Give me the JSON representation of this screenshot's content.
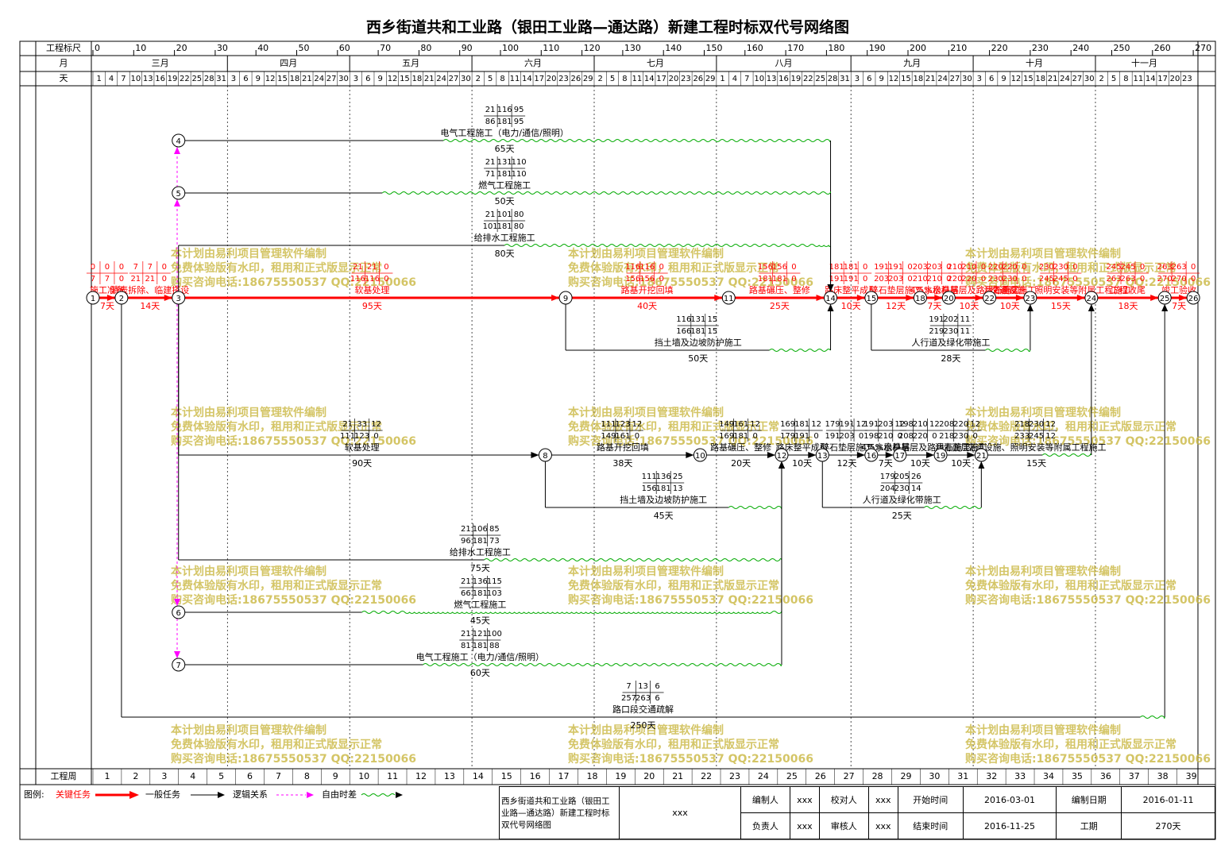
{
  "title": "西乡街道共和工业路（银田工业路—通达路）新建工程时标双代号网络图",
  "row_labels": {
    "scale": "工程标尺",
    "month": "月",
    "day": "天",
    "week": "工程周"
  },
  "scale_ticks": [
    0,
    10,
    20,
    30,
    40,
    50,
    60,
    70,
    80,
    90,
    100,
    110,
    120,
    130,
    140,
    150,
    160,
    170,
    180,
    190,
    200,
    210,
    220,
    230,
    240,
    250,
    260,
    270
  ],
  "months": [
    "三月",
    "四月",
    "五月",
    "六月",
    "七月",
    "八月",
    "九月",
    "十月",
    "十一月"
  ],
  "days": [
    1,
    4,
    7,
    10,
    13,
    16,
    19,
    22,
    25,
    28,
    31,
    3,
    6,
    9,
    12,
    15,
    18,
    21,
    24,
    27,
    30,
    3,
    6,
    9,
    12,
    15,
    18,
    21,
    24,
    27,
    30,
    2,
    5,
    8,
    11,
    14,
    17,
    20,
    23,
    26,
    29,
    2,
    5,
    8,
    11,
    14,
    17,
    20,
    23,
    26,
    29,
    1,
    4,
    7,
    10,
    13,
    16,
    19,
    22,
    25,
    28,
    31,
    3,
    6,
    9,
    12,
    15,
    18,
    21,
    24,
    27,
    30,
    3,
    6,
    9,
    12,
    15,
    18,
    21,
    24,
    27,
    30,
    2,
    5,
    8,
    11,
    14,
    17,
    20,
    23
  ],
  "weeks": [
    1,
    2,
    3,
    4,
    5,
    6,
    7,
    8,
    9,
    10,
    11,
    12,
    13,
    14,
    15,
    16,
    17,
    18,
    19,
    20,
    21,
    22,
    23,
    24,
    25,
    26,
    27,
    28,
    29,
    30,
    31,
    32,
    33,
    34,
    35,
    36,
    37,
    38,
    39
  ],
  "nodes": [
    1,
    2,
    3,
    4,
    5,
    6,
    7,
    8,
    9,
    10,
    11,
    12,
    13,
    14,
    15,
    16,
    17,
    18,
    19,
    20,
    21,
    22,
    23,
    24,
    25,
    26
  ],
  "activities": [
    {
      "label": "施工准备",
      "duration": "7天",
      "start": [
        0,
        0,
        0
      ],
      "finish": [
        7,
        7,
        0
      ]
    },
    {
      "label": "清表拆除、临建搭设",
      "duration": "14天",
      "start": [
        7,
        7,
        0
      ],
      "finish": [
        21,
        21,
        0
      ]
    },
    {
      "label": "软基处理",
      "duration": "95天",
      "start": [
        21,
        21,
        0
      ],
      "finish": [
        116,
        116,
        0
      ]
    },
    {
      "label": "路基开挖回填",
      "duration": "40天",
      "start": [
        116,
        116,
        0
      ],
      "finish": [
        156,
        156,
        0
      ]
    },
    {
      "label": "路基碾压、整修",
      "duration": "25天",
      "start": [
        156,
        156,
        0
      ],
      "finish": [
        181,
        181,
        0
      ]
    },
    {
      "label": "路床整平成型",
      "duration": "10天",
      "start": [
        181,
        181,
        0
      ],
      "finish": [
        191,
        191,
        0
      ]
    },
    {
      "label": "碎石垫层施工",
      "duration": "12天",
      "start": [
        191,
        191,
        0
      ],
      "finish": [
        203,
        203,
        0
      ]
    },
    {
      "label": "4%水稳基层",
      "duration": "7天",
      "start": [
        203,
        203,
        0
      ],
      "finish": [
        210,
        210,
        0
      ]
    },
    {
      "label": "5%水稳基层及路缘石施工",
      "duration": "10天",
      "start": [
        210,
        210,
        0
      ],
      "finish": [
        220,
        220,
        0
      ]
    },
    {
      "label": "沥青面层施工",
      "duration": "10天",
      "start": [
        220,
        220,
        0
      ],
      "finish": [
        230,
        230,
        0
      ]
    },
    {
      "label": "交通设施、照明安装等附属工程施工",
      "duration": "15天",
      "start": [
        230,
        230,
        0
      ],
      "finish": [
        245,
        245,
        0
      ]
    },
    {
      "label": "工程收尾",
      "duration": "18天",
      "start": [
        245,
        245,
        0
      ],
      "finish": [
        263,
        263,
        0
      ]
    },
    {
      "label": "竣工验收",
      "duration": "7天",
      "start": [
        263,
        263,
        0
      ],
      "finish": [
        270,
        270,
        0
      ]
    },
    {
      "label": "电气工程施工（电力/通信/照明）",
      "duration": "65天",
      "start": [
        21,
        116,
        95
      ],
      "finish": [
        86,
        181,
        95
      ]
    },
    {
      "label": "燃气工程施工",
      "duration": "50天",
      "start": [
        21,
        131,
        110
      ],
      "finish": [
        71,
        181,
        110
      ]
    },
    {
      "label": "给排水工程施工",
      "duration": "80天",
      "start": [
        21,
        101,
        80
      ],
      "finish": [
        101,
        181,
        80
      ]
    },
    {
      "label": "挡土墙及边坡防护施工",
      "duration": "50天",
      "start": [
        116,
        131,
        15
      ],
      "finish": [
        166,
        181,
        15
      ]
    },
    {
      "label": "人行道及绿化带施工",
      "duration": "28天",
      "start": [
        191,
        202,
        11
      ],
      "finish": [
        219,
        230,
        11
      ]
    },
    {
      "label": "路口段交通疏解",
      "duration": "250天",
      "start": [
        7,
        13,
        6
      ],
      "finish": [
        257,
        263,
        6
      ]
    },
    {
      "label": "软基处理",
      "duration": "90天",
      "start": [
        21,
        33,
        12
      ],
      "finish": [
        111,
        123,
        0
      ]
    },
    {
      "label": "路基开挖回填",
      "duration": "38天",
      "start": [
        111,
        123,
        12
      ],
      "finish": [
        149,
        161,
        0
      ]
    },
    {
      "label": "路基碾压、整修",
      "duration": "20天",
      "start": [
        149,
        161,
        12
      ],
      "finish": [
        169,
        181,
        0
      ]
    },
    {
      "label": "路床整平成型",
      "duration": "10天",
      "start": [
        169,
        181,
        12
      ],
      "finish": [
        179,
        191,
        0
      ]
    },
    {
      "label": "碎石垫层施工",
      "duration": "12天",
      "start": [
        179,
        191,
        12
      ],
      "finish": [
        191,
        203,
        0
      ]
    },
    {
      "label": "4%水稳基层",
      "duration": "7天",
      "start": [
        191,
        203,
        12
      ],
      "finish": [
        198,
        210,
        0
      ]
    },
    {
      "label": "5%水稳基层及路缘石施工",
      "duration": "10天",
      "start": [
        198,
        210,
        12
      ],
      "finish": [
        208,
        220,
        0
      ]
    },
    {
      "label": "沥青面层施工",
      "duration": "10天",
      "start": [
        208,
        220,
        12
      ],
      "finish": [
        218,
        230,
        0
      ]
    },
    {
      "label": "交通设施、照明安装等附属工程施工",
      "duration": "15天",
      "start": [
        218,
        230,
        12
      ],
      "finish": [
        233,
        245,
        12
      ]
    },
    {
      "label": "挡土墙及边坡防护施工",
      "duration": "45天",
      "start": [
        111,
        136,
        25
      ],
      "finish": [
        156,
        181,
        13
      ]
    },
    {
      "label": "人行道及绿化带施工",
      "duration": "25天",
      "start": [
        179,
        205,
        26
      ],
      "finish": [
        204,
        230,
        14
      ]
    },
    {
      "label": "给排水工程施工",
      "duration": "75天",
      "start": [
        21,
        106,
        85
      ],
      "finish": [
        96,
        181,
        73
      ]
    },
    {
      "label": "燃气工程施工",
      "duration": "45天",
      "start": [
        21,
        136,
        115
      ],
      "finish": [
        66,
        181,
        103
      ]
    },
    {
      "label": "电气工程施工（电力/通信/照明）",
      "duration": "60天",
      "start": [
        21,
        121,
        100
      ],
      "finish": [
        81,
        181,
        88
      ]
    }
  ],
  "watermark": [
    "本计划由易利项目管理软件编制",
    "免费体验版有水印，租用和正式版显示正常",
    "购买咨询电话:18675550537 QQ:22150066"
  ],
  "legend": {
    "title": "图例:",
    "critical": "关键任务",
    "normal": "一般任务",
    "logic": "逻辑关系",
    "float": "自由时差"
  },
  "info": {
    "name": "西乡街道共和工业路（银田工业路—通达路）新建工程时标双代号网络图",
    "code": "xxx",
    "editor_label": "编制人",
    "editor": "xxx",
    "checker_label": "校对人",
    "checker": "xxx",
    "start_label": "开始时间",
    "start": "2016-03-01",
    "date_label": "编制日期",
    "date": "2016-01-11",
    "leader_label": "负责人",
    "leader": "xxx",
    "reviewer_label": "审核人",
    "reviewer": "xxx",
    "end_label": "结束时间",
    "end": "2016-11-25",
    "period_label": "工期",
    "period": "270天"
  }
}
